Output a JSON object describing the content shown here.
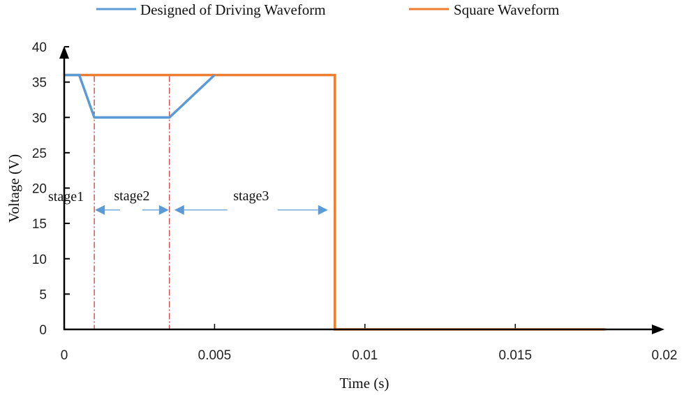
{
  "chart_data": {
    "type": "line",
    "title": "",
    "xlabel": "Time (s)",
    "ylabel": "Voltage (V)",
    "xlim": [
      0,
      0.02
    ],
    "ylim": [
      0,
      40
    ],
    "x_ticks": [
      "0",
      "0.005",
      "0.01",
      "0.015",
      "0.02"
    ],
    "y_ticks": [
      "0",
      "5",
      "10",
      "15",
      "20",
      "25",
      "30",
      "35",
      "40"
    ],
    "grid": false,
    "legend_position": "top",
    "series": [
      {
        "name": "Designed of Driving Waveform",
        "color": "#5B9BD5",
        "x": [
          0,
          0.0005,
          0.001,
          0.0035,
          0.005
        ],
        "y": [
          36,
          36,
          30,
          30,
          36
        ]
      },
      {
        "name": "Square Waveform",
        "color": "#ED7D31",
        "x": [
          0,
          0.009,
          0.009,
          0.018
        ],
        "y": [
          36,
          36,
          0,
          0
        ]
      }
    ],
    "annotations": {
      "stage_dividers": {
        "x": [
          0.001,
          0.0035
        ],
        "color": "#C00000",
        "style": "dash-dot"
      },
      "stages": [
        {
          "label": "stage1",
          "x_start": 0,
          "x_end": 0.001
        },
        {
          "label": "stage2",
          "x_start": 0.001,
          "x_end": 0.0035
        },
        {
          "label": "stage3",
          "x_start": 0.0035,
          "x_end": 0.009
        }
      ],
      "arrow_y": 17
    }
  },
  "legend": {
    "items": [
      {
        "label": "Designed of Driving Waveform",
        "color": "#5B9BD5"
      },
      {
        "label": "Square Waveform",
        "color": "#ED7D31"
      }
    ]
  },
  "axes": {
    "xlabel": "Time (s)",
    "ylabel": "Voltage (V)"
  }
}
